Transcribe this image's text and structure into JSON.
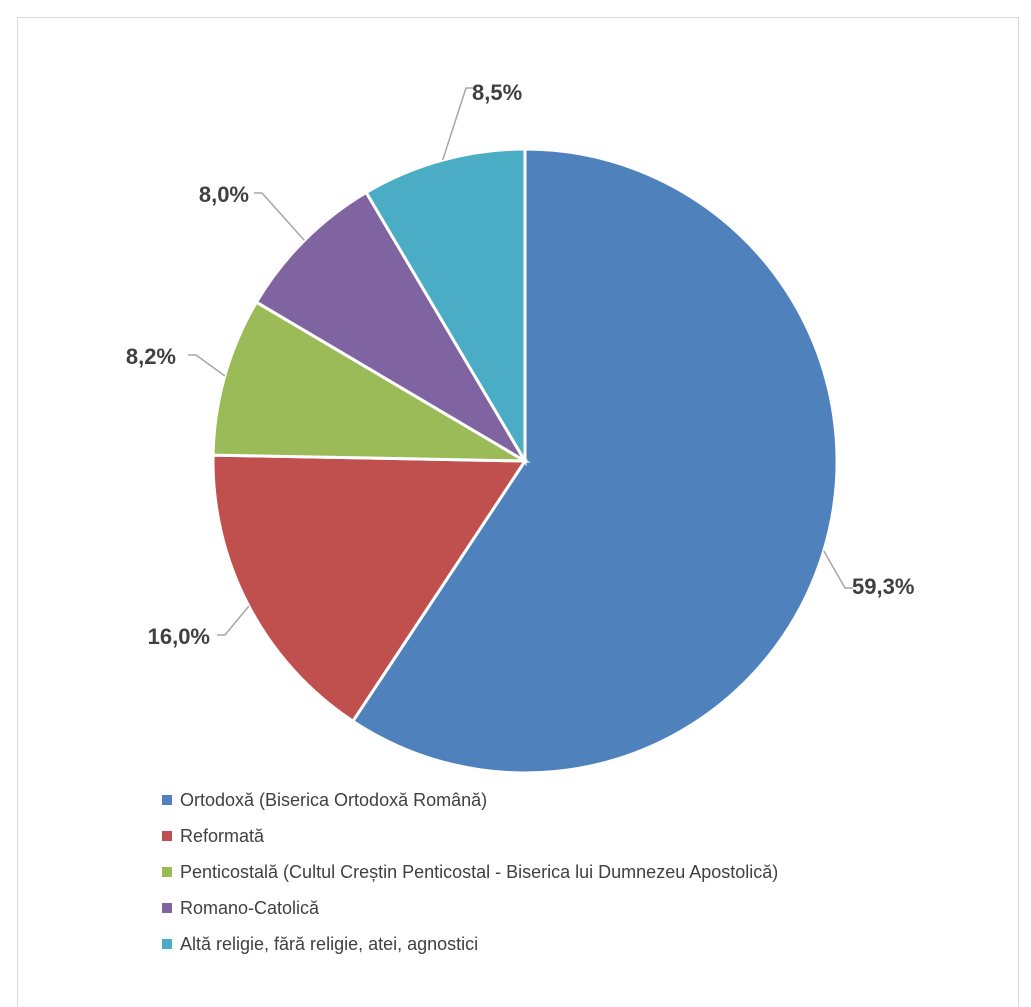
{
  "chart_data": {
    "type": "pie",
    "title": "",
    "labels": [
      "Ortodoxă (Biserica Ortodoxă Română)",
      "Reformată",
      "Penticostală (Cultul Creștin Penticostal - Biserica lui Dumnezeu Apostolică)",
      "Romano-Catolică",
      "Altă religie, fără religie, atei, agnostici"
    ],
    "values": [
      59.3,
      16.0,
      8.2,
      8.0,
      8.5
    ],
    "value_labels": [
      "59,3%",
      "16,0%",
      "8,2%",
      "8,0%",
      "8,5%"
    ],
    "colors": [
      "#4f81bd",
      "#c0504d",
      "#9bbb59",
      "#8064a2",
      "#4bacc6"
    ],
    "start_angle_deg": 0,
    "direction": "clockwise",
    "legend_position": "bottom",
    "data_labels": "outside with leader lines"
  }
}
